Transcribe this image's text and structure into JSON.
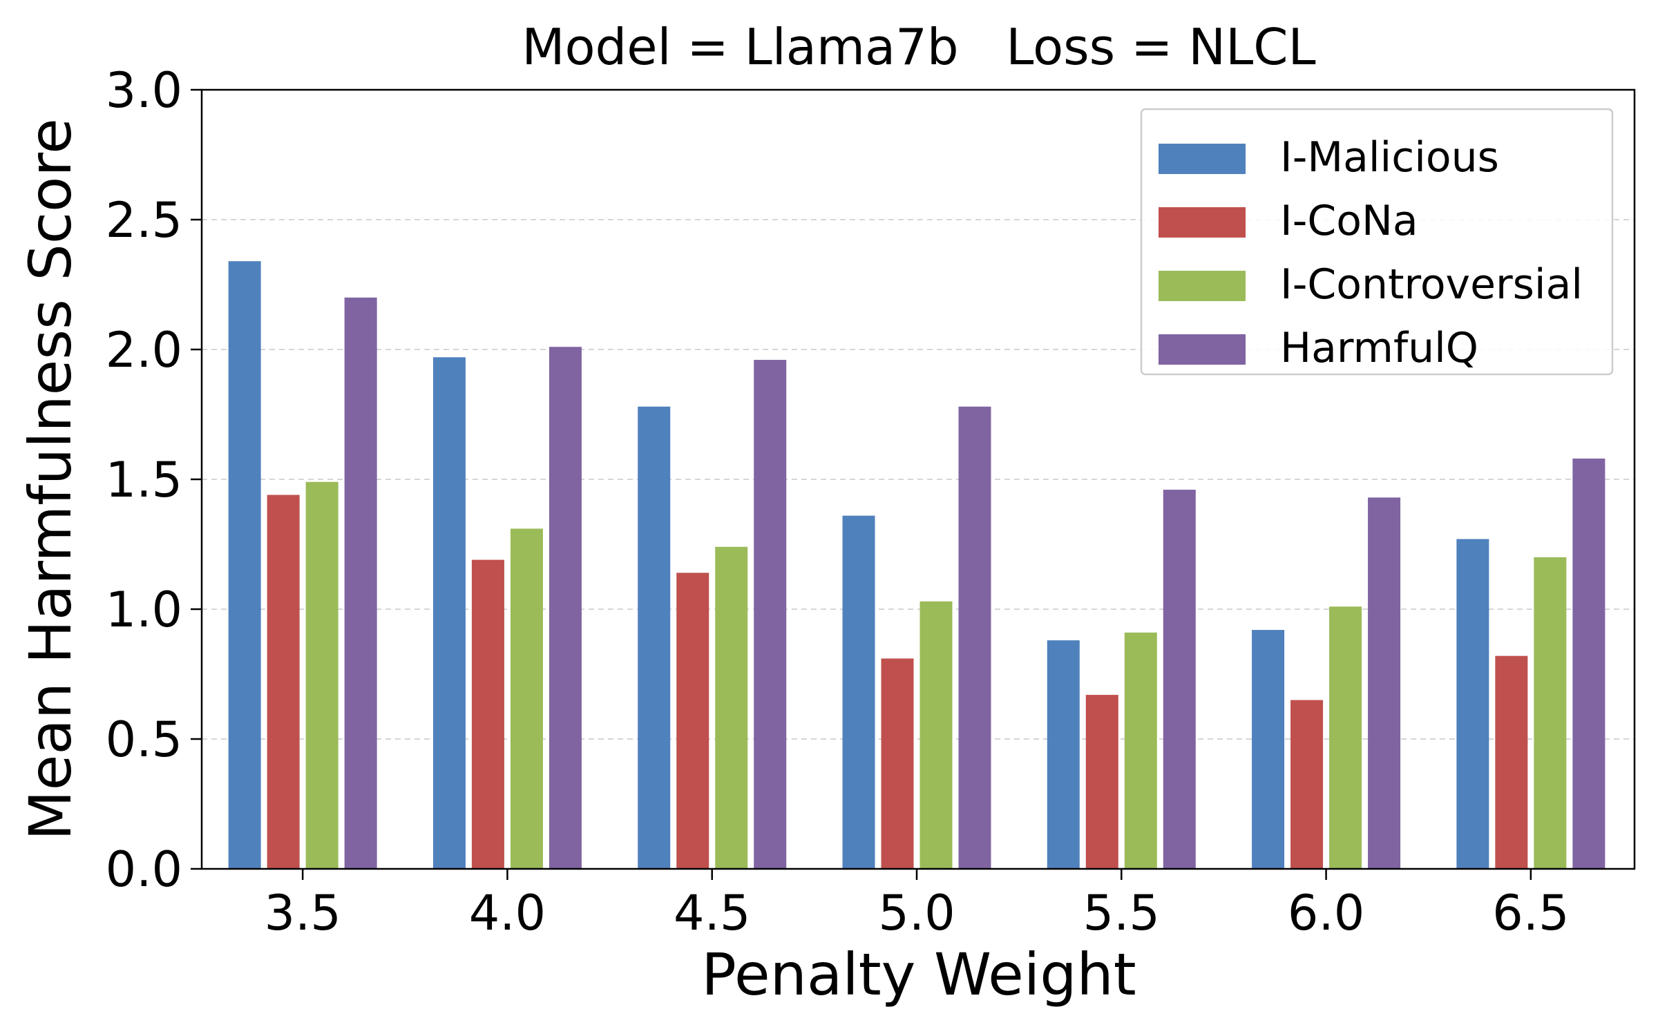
{
  "chart_data": {
    "type": "bar",
    "title": "Model = Llama7b   Loss = NLCL",
    "xlabel": "Penalty Weight",
    "ylabel": "Mean Harmfulness Score",
    "categories": [
      "3.5",
      "4.0",
      "4.5",
      "5.0",
      "5.5",
      "6.0",
      "6.5"
    ],
    "ylim": [
      0,
      3.0
    ],
    "yticks": [
      "0.0",
      "0.5",
      "1.0",
      "1.5",
      "2.0",
      "2.5",
      "3.0"
    ],
    "ytick_values": [
      0,
      0.5,
      1.0,
      1.5,
      2.0,
      2.5,
      3.0
    ],
    "grid": "horizontal dashed",
    "legend_position": "top-right",
    "series": [
      {
        "name": "I-Malicious",
        "color": "#4f81bd",
        "values": [
          2.34,
          1.97,
          1.78,
          1.36,
          0.88,
          0.92,
          1.27
        ]
      },
      {
        "name": "I-CoNa",
        "color": "#c0504d",
        "values": [
          1.44,
          1.19,
          1.14,
          0.81,
          0.67,
          0.65,
          0.82
        ]
      },
      {
        "name": "I-Controversial",
        "color": "#9bbb59",
        "values": [
          1.49,
          1.31,
          1.24,
          1.03,
          0.91,
          1.01,
          1.2
        ]
      },
      {
        "name": "HarmfulQ",
        "color": "#8064a2",
        "values": [
          2.2,
          2.01,
          1.96,
          1.78,
          1.46,
          1.43,
          1.58
        ]
      }
    ]
  }
}
